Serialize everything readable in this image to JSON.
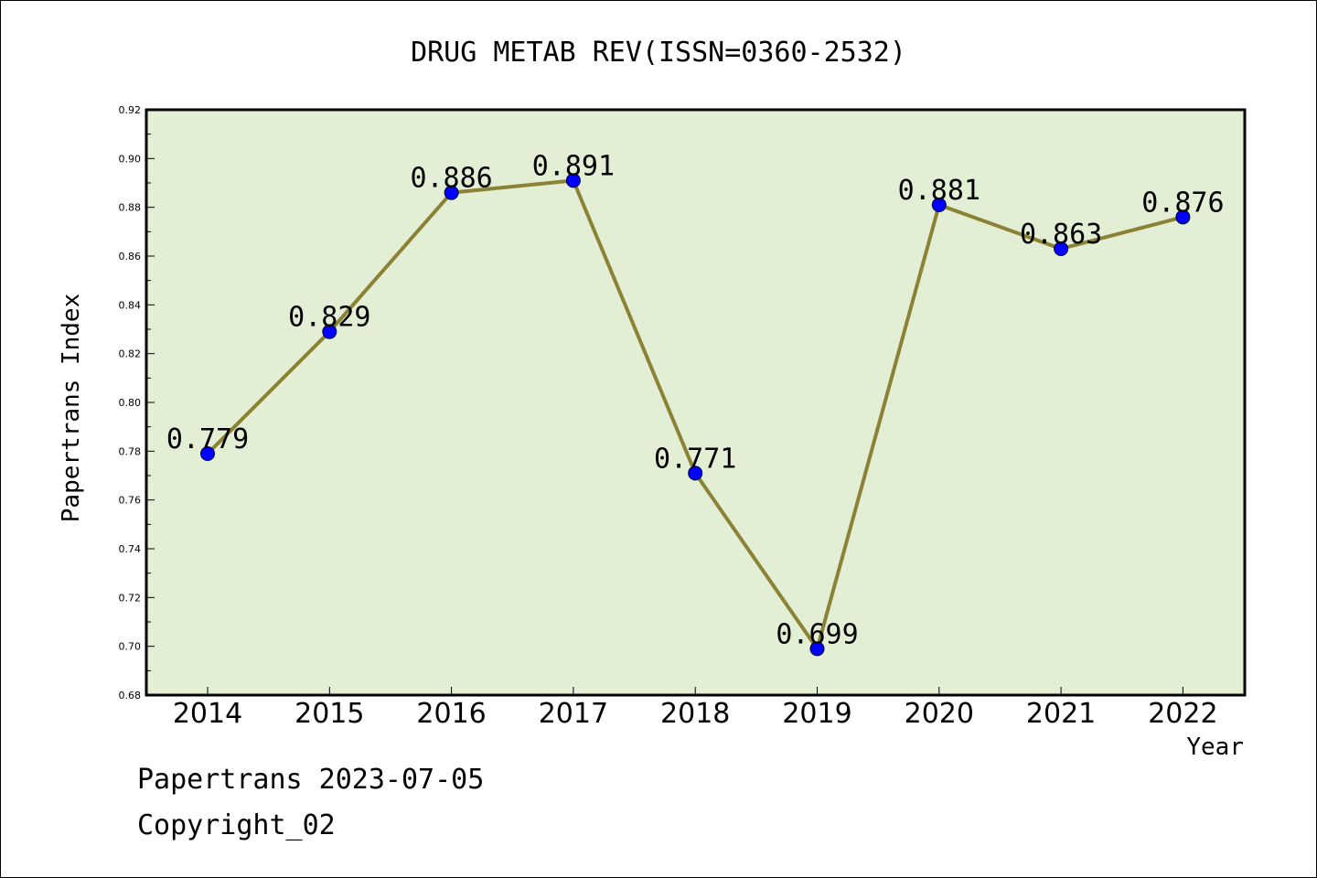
{
  "chart_data": {
    "type": "line",
    "title": "DRUG METAB REV(ISSN=0360-2532)",
    "xlabel": "Year",
    "ylabel": "Papertrans Index",
    "categories": [
      "2014",
      "2015",
      "2016",
      "2017",
      "2018",
      "2019",
      "2020",
      "2021",
      "2022"
    ],
    "values": [
      0.779,
      0.829,
      0.886,
      0.891,
      0.771,
      0.699,
      0.881,
      0.863,
      0.876
    ],
    "data_labels": [
      "0.779",
      "0.829",
      "0.886",
      "0.891",
      "0.771",
      "0.699",
      "0.881",
      "0.863",
      "0.876"
    ],
    "ylim": [
      0.68,
      0.92
    ],
    "yticks": [
      "0.68",
      "0.70",
      "0.72",
      "0.74",
      "0.76",
      "0.78",
      "0.80",
      "0.82",
      "0.84",
      "0.86",
      "0.88",
      "0.90",
      "0.92"
    ],
    "grid": false,
    "legend": "none",
    "colors": {
      "plot_background": "#e2efd4",
      "line": "#8b8236",
      "marker": "#0000ff"
    }
  },
  "footer": {
    "line1": "Papertrans 2023-07-05",
    "line2": "Copyright_02"
  }
}
